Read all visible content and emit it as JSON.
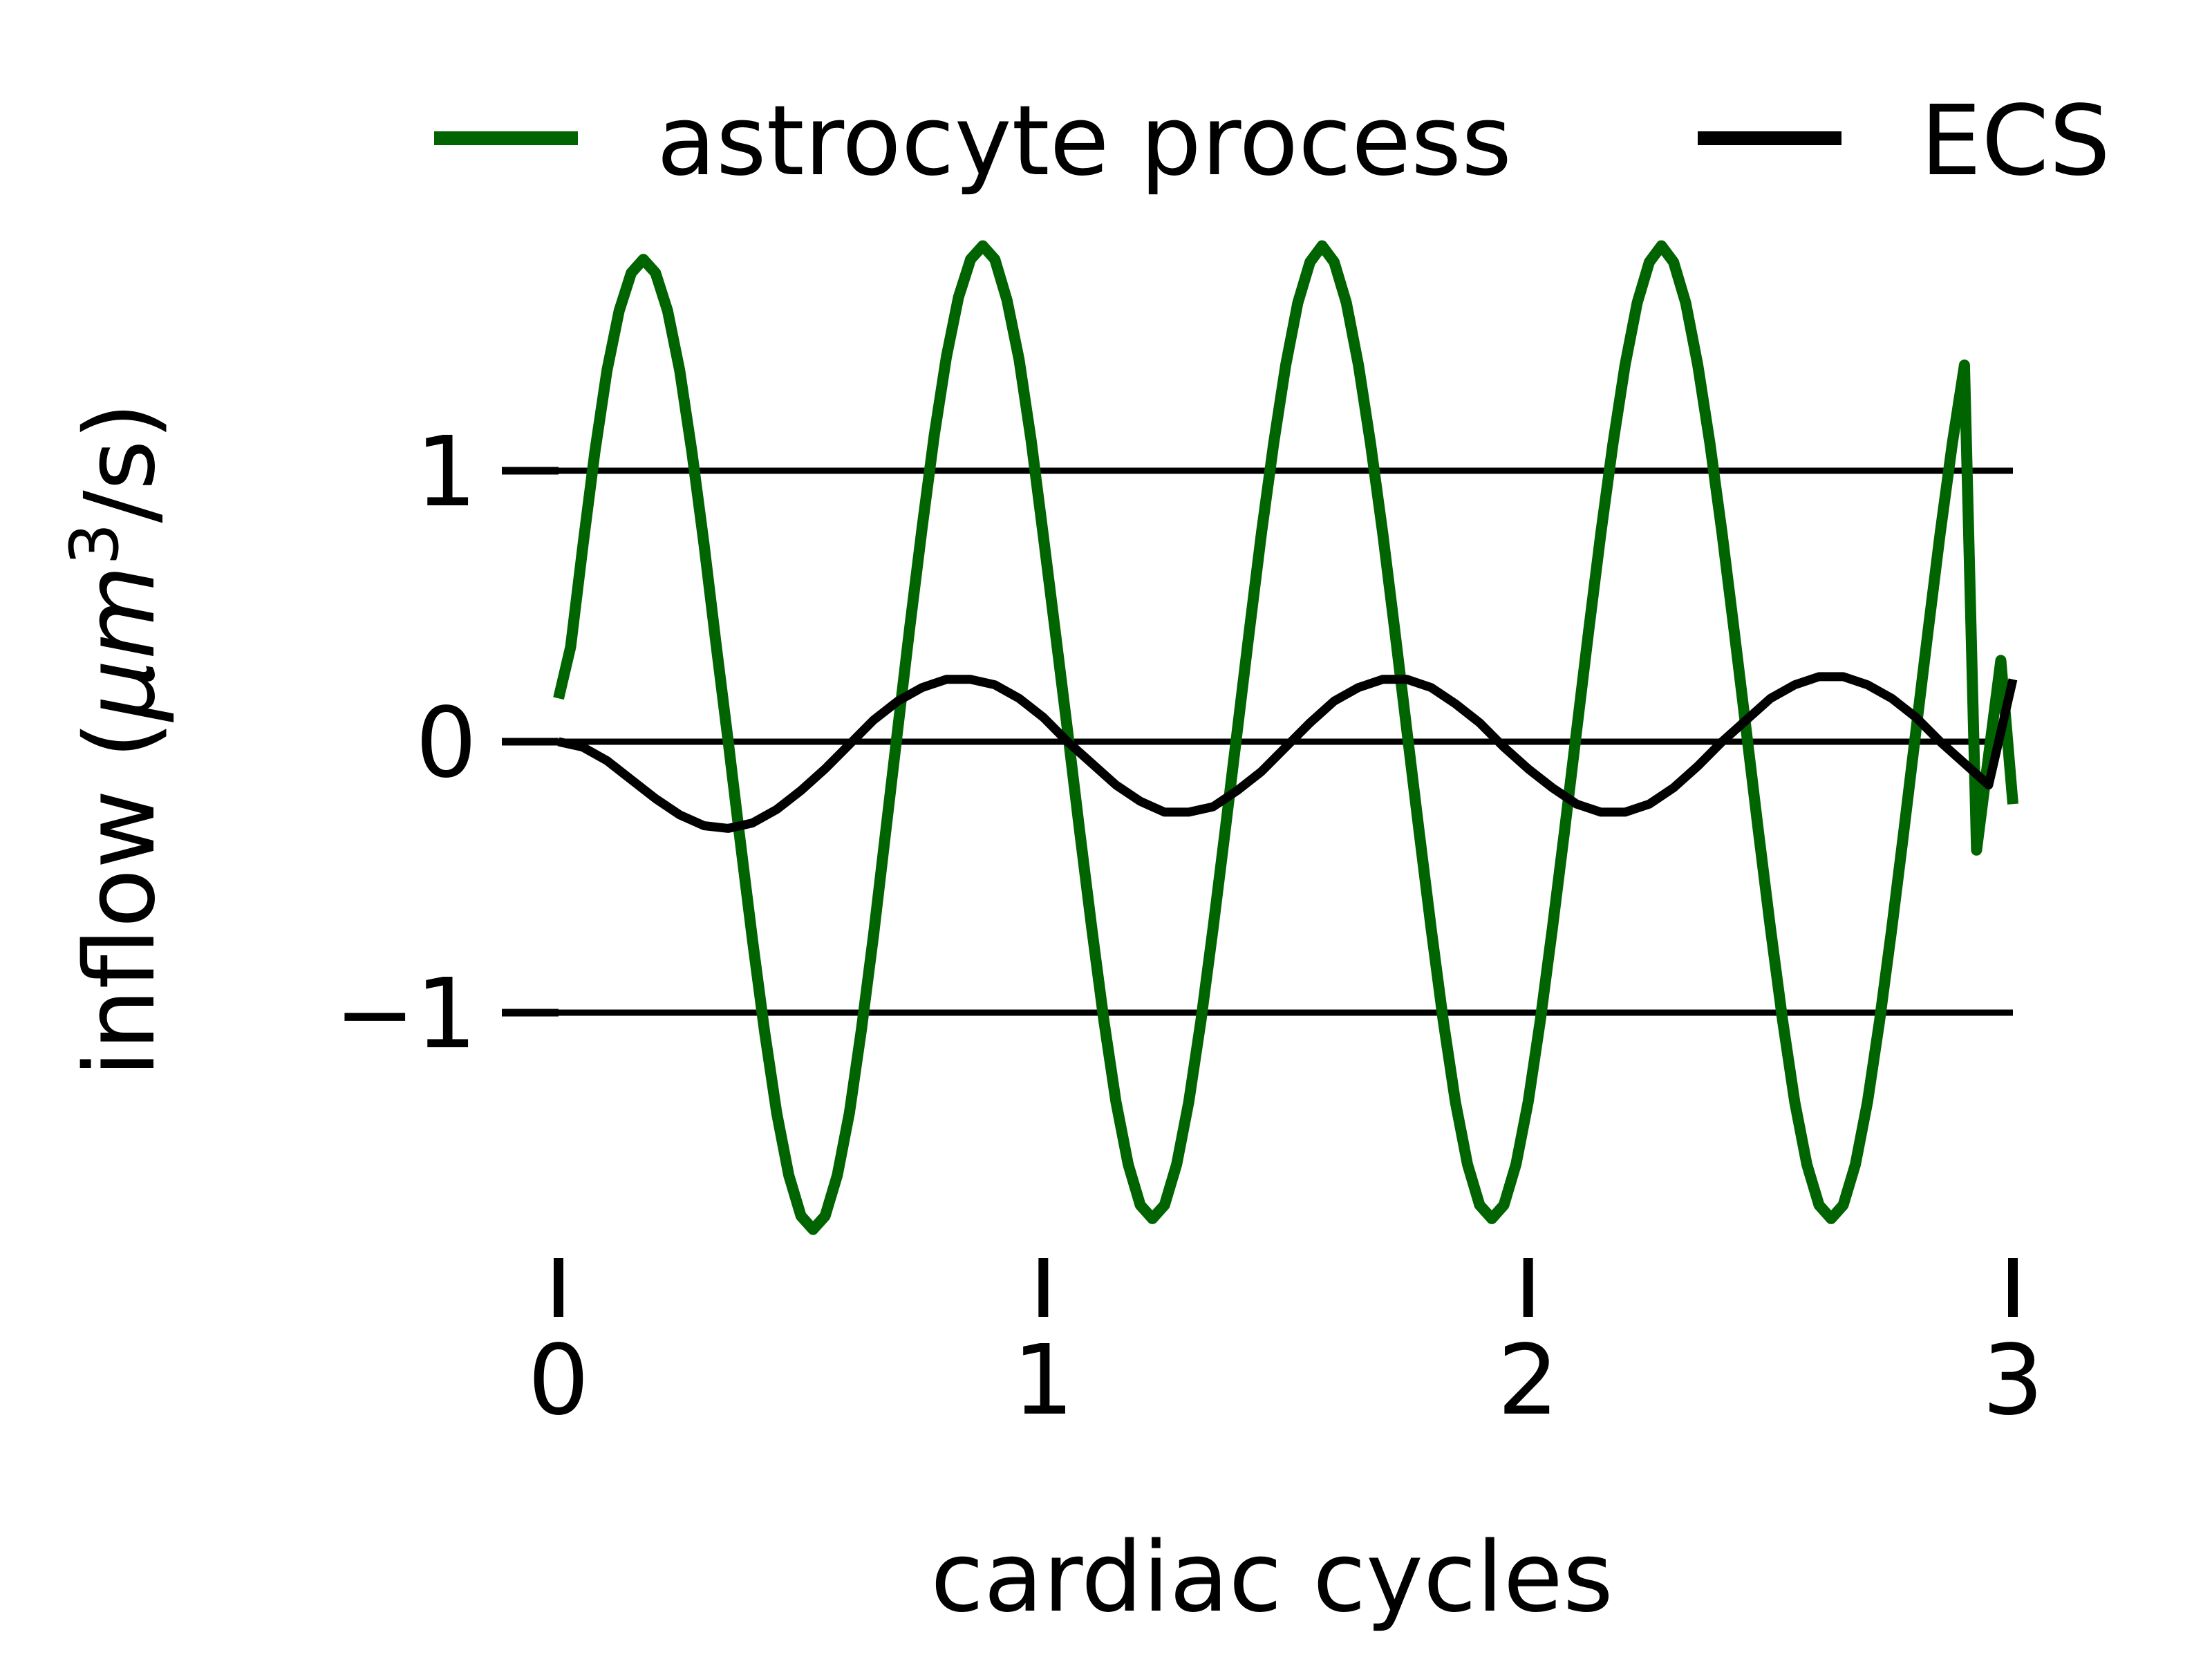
{
  "chart_data": {
    "type": "line",
    "xlabel": "cardiac cycles",
    "ylabel_main": "inflow (",
    "ylabel_mu": "μ",
    "ylabel_unit": "m",
    "ylabel_exp": "3",
    "ylabel_tail": "/s)",
    "xlim": [
      0,
      3
    ],
    "ylim": [
      -1.9,
      1.9
    ],
    "xticks": [
      0,
      1,
      2,
      3
    ],
    "xtick_labels": [
      "0",
      "1",
      "2",
      "3"
    ],
    "yticks": [
      -1,
      0,
      1
    ],
    "ytick_labels": [
      "−1",
      "0",
      "1"
    ],
    "grid": "horizontal lines at y ticks",
    "legend": "top, horizontal",
    "series": [
      {
        "name": "astrocyte process",
        "color": "#006400",
        "x": [
          0,
          0.025,
          0.05,
          0.075,
          0.1,
          0.125,
          0.15,
          0.175,
          0.2,
          0.225,
          0.25,
          0.275,
          0.3,
          0.325,
          0.35,
          0.375,
          0.4,
          0.425,
          0.45,
          0.475,
          0.5,
          0.525,
          0.55,
          0.575,
          0.6,
          0.625,
          0.65,
          0.675,
          0.7,
          0.725,
          0.75,
          0.775,
          0.8,
          0.825,
          0.85,
          0.875,
          0.9,
          0.925,
          0.95,
          0.975,
          1.0,
          1.025,
          1.05,
          1.075,
          1.1,
          1.125,
          1.15,
          1.175,
          1.2,
          1.225,
          1.25,
          1.275,
          1.3,
          1.325,
          1.35,
          1.375,
          1.4,
          1.425,
          1.45,
          1.475,
          1.5,
          1.525,
          1.55,
          1.575,
          1.6,
          1.625,
          1.65,
          1.675,
          1.7,
          1.725,
          1.75,
          1.775,
          1.8,
          1.825,
          1.85,
          1.875,
          1.9,
          1.925,
          1.95,
          1.975,
          2.0,
          2.025,
          2.05,
          2.075,
          2.1,
          2.125,
          2.15,
          2.175,
          2.2,
          2.225,
          2.25,
          2.275,
          2.3,
          2.325,
          2.35,
          2.375,
          2.4,
          2.425,
          2.45,
          2.475,
          2.5,
          2.525,
          2.55,
          2.575,
          2.6,
          2.625,
          2.65,
          2.675,
          2.7,
          2.725,
          2.75,
          2.775,
          2.8,
          2.825,
          2.85,
          2.875,
          2.9,
          2.925,
          2.95,
          2.975,
          3.0
        ],
        "values": [
          0.16,
          0.35,
          0.72,
          1.07,
          1.37,
          1.59,
          1.73,
          1.78,
          1.73,
          1.59,
          1.37,
          1.07,
          0.73,
          0.36,
          0.0,
          -0.37,
          -0.73,
          -1.07,
          -1.37,
          -1.6,
          -1.75,
          -1.8,
          -1.75,
          -1.6,
          -1.37,
          -1.06,
          -0.71,
          -0.33,
          0.05,
          0.43,
          0.79,
          1.13,
          1.42,
          1.64,
          1.78,
          1.83,
          1.78,
          1.63,
          1.41,
          1.11,
          0.76,
          0.4,
          0.04,
          -0.33,
          -0.69,
          -1.03,
          -1.33,
          -1.56,
          -1.71,
          -1.76,
          -1.71,
          -1.56,
          -1.33,
          -1.03,
          -0.69,
          -0.33,
          0.04,
          0.41,
          0.77,
          1.1,
          1.39,
          1.62,
          1.77,
          1.83,
          1.77,
          1.62,
          1.39,
          1.1,
          0.77,
          0.41,
          0.04,
          -0.33,
          -0.69,
          -1.03,
          -1.33,
          -1.56,
          -1.71,
          -1.76,
          -1.71,
          -1.56,
          -1.33,
          -1.03,
          -0.69,
          -0.33,
          0.04,
          0.41,
          0.77,
          1.1,
          1.39,
          1.62,
          1.77,
          1.83,
          1.77,
          1.62,
          1.39,
          1.1,
          0.77,
          0.41,
          0.04,
          -0.33,
          -0.69,
          -1.03,
          -1.33,
          -1.56,
          -1.71,
          -1.76,
          -1.71,
          -1.56,
          -1.33,
          -1.03,
          -0.69,
          -0.33,
          0.04,
          0.41,
          0.77,
          1.1,
          1.39,
          -0.4,
          -0.05,
          0.3,
          -0.23
        ]
      },
      {
        "name": "ECS",
        "color": "#000000",
        "x": [
          0,
          0.05,
          0.1,
          0.15,
          0.2,
          0.25,
          0.3,
          0.35,
          0.4,
          0.45,
          0.5,
          0.55,
          0.6,
          0.65,
          0.7,
          0.75,
          0.8,
          0.85,
          0.9,
          0.95,
          1.0,
          1.05,
          1.1,
          1.15,
          1.2,
          1.25,
          1.3,
          1.35,
          1.4,
          1.45,
          1.5,
          1.55,
          1.6,
          1.65,
          1.7,
          1.75,
          1.8,
          1.85,
          1.9,
          1.95,
          2.0,
          2.05,
          2.1,
          2.15,
          2.2,
          2.25,
          2.3,
          2.35,
          2.4,
          2.45,
          2.5,
          2.55,
          2.6,
          2.65,
          2.7,
          2.75,
          2.8,
          2.85,
          2.9,
          2.95,
          3.0
        ],
        "values": [
          0.0,
          -0.02,
          -0.07,
          -0.14,
          -0.21,
          -0.27,
          -0.31,
          -0.32,
          -0.3,
          -0.25,
          -0.18,
          -0.1,
          -0.01,
          0.08,
          0.15,
          0.2,
          0.23,
          0.23,
          0.21,
          0.16,
          0.09,
          0.0,
          -0.08,
          -0.16,
          -0.22,
          -0.26,
          -0.26,
          -0.24,
          -0.18,
          -0.11,
          -0.02,
          0.07,
          0.15,
          0.2,
          0.23,
          0.23,
          0.2,
          0.14,
          0.07,
          -0.02,
          -0.1,
          -0.17,
          -0.23,
          -0.26,
          -0.26,
          -0.23,
          -0.17,
          -0.09,
          0.0,
          0.08,
          0.16,
          0.21,
          0.24,
          0.24,
          0.21,
          0.16,
          0.09,
          0.0,
          -0.08,
          -0.16,
          0.23
        ]
      }
    ]
  }
}
